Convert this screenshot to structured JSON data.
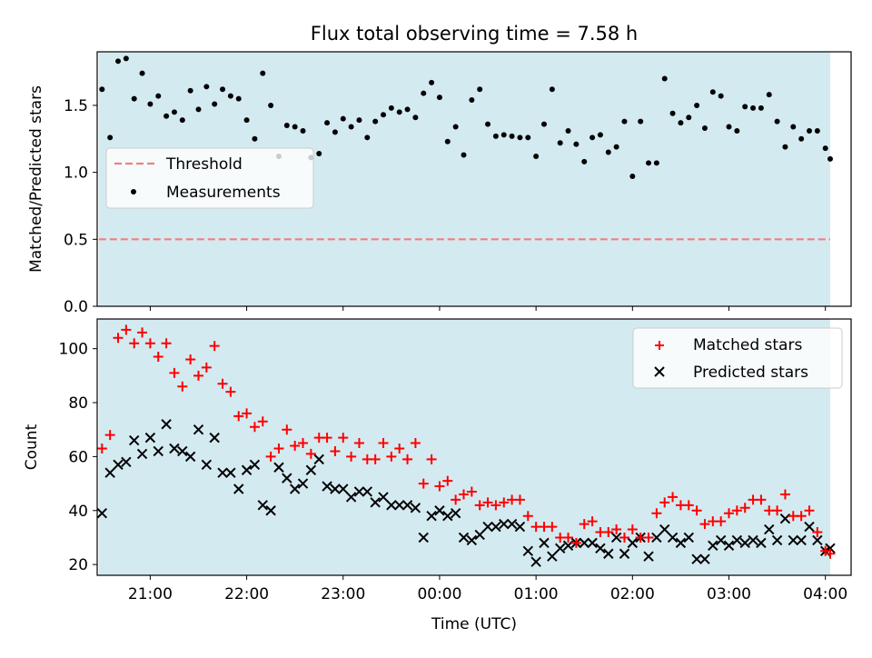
{
  "title": "Flux total observing time = 7.58 h",
  "colors": {
    "background_band": "#d4eaf1",
    "threshold": "#f08080",
    "measurements": "#000000",
    "matched": "#ff0000",
    "predicted": "#000000"
  },
  "chart_data": [
    {
      "type": "scatter",
      "title": "Flux total observing time = 7.58 h",
      "xlabel": "",
      "ylabel": "Matched/Predicted stars",
      "ylim": [
        0.0,
        1.9
      ],
      "yticks": [
        "0.0",
        "0.5",
        "1.0",
        "1.5"
      ],
      "xlim": [
        "20:27",
        "04:16"
      ],
      "shaded_range": [
        "20:28",
        "04:03"
      ],
      "legend_position": "center-left",
      "grid": false,
      "series": [
        {
          "name": "Threshold",
          "style": "dashed-line",
          "x": [
            "20:28",
            "04:03"
          ],
          "y": [
            0.5,
            0.5
          ]
        },
        {
          "name": "Measurements",
          "style": "dot",
          "x": [
            "20:30",
            "20:35",
            "20:40",
            "20:45",
            "20:50",
            "20:55",
            "21:00",
            "21:05",
            "21:10",
            "21:15",
            "21:20",
            "21:25",
            "21:30",
            "21:35",
            "21:40",
            "21:45",
            "21:50",
            "21:55",
            "22:00",
            "22:05",
            "22:10",
            "22:15",
            "22:20",
            "22:25",
            "22:30",
            "22:35",
            "22:40",
            "22:45",
            "22:50",
            "22:55",
            "23:00",
            "23:05",
            "23:10",
            "23:15",
            "23:20",
            "23:25",
            "23:30",
            "23:35",
            "23:40",
            "23:45",
            "23:50",
            "23:55",
            "00:00",
            "00:05",
            "00:10",
            "00:15",
            "00:20",
            "00:25",
            "00:30",
            "00:35",
            "00:40",
            "00:45",
            "00:50",
            "00:55",
            "01:00",
            "01:05",
            "01:10",
            "01:15",
            "01:20",
            "01:25",
            "01:30",
            "01:35",
            "01:40",
            "01:45",
            "01:50",
            "01:55",
            "02:00",
            "02:05",
            "02:10",
            "02:15",
            "02:20",
            "02:25",
            "02:30",
            "02:35",
            "02:40",
            "02:45",
            "02:50",
            "02:55",
            "03:00",
            "03:05",
            "03:10",
            "03:15",
            "03:20",
            "03:25",
            "03:30",
            "03:35",
            "03:40",
            "03:45",
            "03:50",
            "03:55",
            "04:00",
            "04:03"
          ],
          "y": [
            1.62,
            1.26,
            1.83,
            1.85,
            1.55,
            1.74,
            1.51,
            1.57,
            1.42,
            1.45,
            1.39,
            1.61,
            1.47,
            1.64,
            1.51,
            1.62,
            1.57,
            1.55,
            1.39,
            1.25,
            1.74,
            1.5,
            1.12,
            1.35,
            1.34,
            1.31,
            1.11,
            1.14,
            1.37,
            1.3,
            1.4,
            1.34,
            1.39,
            1.26,
            1.38,
            1.43,
            1.48,
            1.45,
            1.47,
            1.41,
            1.59,
            1.67,
            1.56,
            1.23,
            1.34,
            1.13,
            1.54,
            1.62,
            1.36,
            1.27,
            1.28,
            1.27,
            1.26,
            1.26,
            1.12,
            1.36,
            1.62,
            1.22,
            1.31,
            1.21,
            1.08,
            1.26,
            1.28,
            1.15,
            1.19,
            1.38,
            0.97,
            1.38,
            1.07,
            1.07,
            1.7,
            1.44,
            1.37,
            1.41,
            1.5,
            1.33,
            1.6,
            1.57,
            1.34,
            1.31,
            1.49,
            1.48,
            1.48,
            1.58,
            1.38,
            1.19,
            1.34,
            1.25,
            1.31,
            1.31,
            1.18,
            1.1
          ]
        }
      ]
    },
    {
      "type": "scatter",
      "xlabel": "Time (UTC)",
      "ylabel": "Count",
      "ylim": [
        16,
        111
      ],
      "yticks": [
        "20",
        "40",
        "60",
        "80",
        "100"
      ],
      "xticks": [
        "21:00",
        "22:00",
        "23:00",
        "00:00",
        "01:00",
        "02:00",
        "03:00",
        "04:00"
      ],
      "xlim": [
        "20:27",
        "04:16"
      ],
      "shaded_range": [
        "20:28",
        "04:03"
      ],
      "legend_position": "top-right",
      "grid": false,
      "series": [
        {
          "name": "Matched stars",
          "marker": "plus",
          "x": [
            "20:30",
            "20:35",
            "20:40",
            "20:45",
            "20:50",
            "20:55",
            "21:00",
            "21:05",
            "21:10",
            "21:15",
            "21:20",
            "21:25",
            "21:30",
            "21:35",
            "21:40",
            "21:45",
            "21:50",
            "21:55",
            "22:00",
            "22:05",
            "22:10",
            "22:15",
            "22:20",
            "22:25",
            "22:30",
            "22:35",
            "22:40",
            "22:45",
            "22:50",
            "22:55",
            "23:00",
            "23:05",
            "23:10",
            "23:15",
            "23:20",
            "23:25",
            "23:30",
            "23:35",
            "23:40",
            "23:45",
            "23:50",
            "23:55",
            "00:00",
            "00:05",
            "00:10",
            "00:15",
            "00:20",
            "00:25",
            "00:30",
            "00:35",
            "00:40",
            "00:45",
            "00:50",
            "00:55",
            "01:00",
            "01:05",
            "01:10",
            "01:15",
            "01:20",
            "01:25",
            "01:30",
            "01:35",
            "01:40",
            "01:45",
            "01:50",
            "01:55",
            "02:00",
            "02:05",
            "02:10",
            "02:15",
            "02:20",
            "02:25",
            "02:30",
            "02:35",
            "02:40",
            "02:45",
            "02:50",
            "02:55",
            "03:00",
            "03:05",
            "03:10",
            "03:15",
            "03:20",
            "03:25",
            "03:30",
            "03:35",
            "03:40",
            "03:45",
            "03:50",
            "03:55",
            "04:00",
            "04:03"
          ],
          "y": [
            63,
            68,
            104,
            107,
            102,
            106,
            102,
            97,
            102,
            91,
            86,
            96,
            90,
            93,
            101,
            87,
            84,
            75,
            76,
            71,
            73,
            60,
            63,
            70,
            64,
            65,
            61,
            67,
            67,
            62,
            67,
            60,
            65,
            59,
            59,
            65,
            60,
            63,
            59,
            65,
            50,
            59,
            49,
            51,
            44,
            46,
            47,
            42,
            43,
            42,
            43,
            44,
            44,
            38,
            34,
            34,
            34,
            30,
            30,
            28,
            35,
            36,
            32,
            32,
            33,
            30,
            33,
            30,
            30,
            39,
            43,
            45,
            42,
            42,
            40,
            35,
            36,
            36,
            39,
            40,
            41,
            44,
            44,
            40,
            40,
            46,
            38,
            38,
            40,
            32,
            25,
            24
          ]
        },
        {
          "name": "Predicted stars",
          "marker": "x",
          "x": [
            "20:30",
            "20:35",
            "20:40",
            "20:45",
            "20:50",
            "20:55",
            "21:00",
            "21:05",
            "21:10",
            "21:15",
            "21:20",
            "21:25",
            "21:30",
            "21:35",
            "21:40",
            "21:45",
            "21:50",
            "21:55",
            "22:00",
            "22:05",
            "22:10",
            "22:15",
            "22:20",
            "22:25",
            "22:30",
            "22:35",
            "22:40",
            "22:45",
            "22:50",
            "22:55",
            "23:00",
            "23:05",
            "23:10",
            "23:15",
            "23:20",
            "23:25",
            "23:30",
            "23:35",
            "23:40",
            "23:45",
            "23:50",
            "23:55",
            "00:00",
            "00:05",
            "00:10",
            "00:15",
            "00:20",
            "00:25",
            "00:30",
            "00:35",
            "00:40",
            "00:45",
            "00:50",
            "00:55",
            "01:00",
            "01:05",
            "01:10",
            "01:15",
            "01:20",
            "01:25",
            "01:30",
            "01:35",
            "01:40",
            "01:45",
            "01:50",
            "01:55",
            "02:00",
            "02:05",
            "02:10",
            "02:15",
            "02:20",
            "02:25",
            "02:30",
            "02:35",
            "02:40",
            "02:45",
            "02:50",
            "02:55",
            "03:00",
            "03:05",
            "03:10",
            "03:15",
            "03:20",
            "03:25",
            "03:30",
            "03:35",
            "03:40",
            "03:45",
            "03:50",
            "03:55",
            "04:00",
            "04:03"
          ],
          "y": [
            39,
            54,
            57,
            58,
            66,
            61,
            67,
            62,
            72,
            63,
            62,
            60,
            70,
            57,
            67,
            54,
            54,
            48,
            55,
            57,
            42,
            40,
            56,
            52,
            48,
            50,
            55,
            59,
            49,
            48,
            48,
            45,
            47,
            47,
            43,
            45,
            42,
            42,
            42,
            41,
            30,
            38,
            40,
            38,
            39,
            30,
            29,
            31,
            34,
            34,
            35,
            35,
            34,
            25,
            21,
            28,
            23,
            26,
            27,
            28,
            28,
            28,
            26,
            24,
            30,
            24,
            28,
            30,
            23,
            30,
            33,
            30,
            28,
            30,
            22,
            22,
            27,
            29,
            27,
            29,
            28,
            29,
            28,
            33,
            29,
            37,
            29,
            29,
            34,
            29,
            25,
            26
          ]
        }
      ]
    }
  ]
}
